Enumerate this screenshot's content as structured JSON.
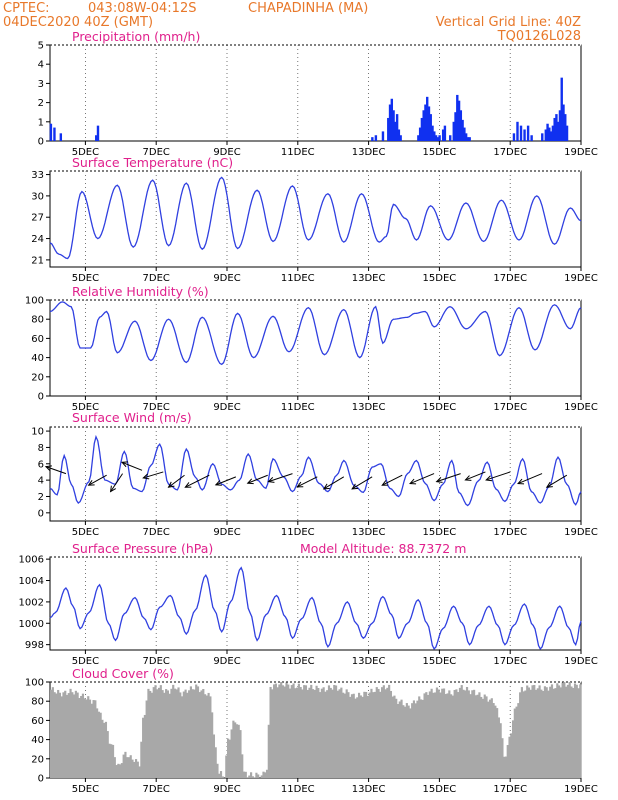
{
  "header": {
    "org": "CPTEC:",
    "coords": "043:08W-04:12S",
    "station": "CHAPADINHA (MA)",
    "run": "04DEC2020 40Z (GMT)",
    "grid_line": "Vertical Grid Line: 40Z",
    "model": "TQ0126L028"
  },
  "x_labels": [
    "5DEC",
    "7DEC",
    "9DEC",
    "11DEC",
    "13DEC",
    "15DEC",
    "17DEC",
    "19DEC"
  ],
  "x_label_days": [
    1,
    3,
    5,
    7,
    9,
    11,
    13,
    15
  ],
  "x_range_days": [
    0,
    15
  ],
  "colors": {
    "line": "#3040e0",
    "bars": "#1030f0",
    "cloud": "#a8a8a8",
    "title": "#e0208c",
    "header": "#e8782a",
    "arrow": "#000000",
    "grid": "#555555"
  },
  "chart_data": [
    {
      "id": "precip",
      "type": "bar",
      "title": "Precipitation (mm/h)",
      "ylim": [
        0,
        5
      ],
      "yticks": [
        0,
        1,
        2,
        3,
        4,
        5
      ],
      "x_day": [
        0.02,
        0.12,
        0.3,
        1.3,
        1.35,
        9.1,
        9.2,
        9.4,
        9.55,
        9.6,
        9.65,
        9.7,
        9.75,
        9.8,
        9.85,
        9.9,
        10.4,
        10.45,
        10.5,
        10.55,
        10.6,
        10.65,
        10.7,
        10.75,
        10.8,
        10.85,
        10.9,
        10.95,
        11.0,
        11.1,
        11.15,
        11.3,
        11.4,
        11.45,
        11.5,
        11.55,
        11.6,
        11.65,
        11.7,
        11.75,
        11.8,
        11.85,
        13.1,
        13.2,
        13.3,
        13.4,
        13.5,
        13.6,
        13.9,
        14.0,
        14.05,
        14.1,
        14.15,
        14.2,
        14.25,
        14.3,
        14.35,
        14.4,
        14.45,
        14.5,
        14.55,
        14.6
      ],
      "values": [
        0.9,
        0.7,
        0.4,
        0.3,
        0.8,
        0.2,
        0.3,
        0.5,
        1.2,
        1.9,
        2.2,
        1.6,
        1.0,
        1.4,
        0.6,
        0.3,
        0.3,
        0.7,
        1.2,
        1.6,
        1.9,
        2.3,
        1.8,
        1.4,
        0.8,
        0.5,
        0.3,
        0.2,
        0.3,
        0.6,
        0.8,
        0.3,
        1.0,
        1.5,
        2.4,
        2.1,
        1.6,
        1.1,
        0.7,
        0.4,
        0.2,
        0.2,
        0.4,
        1.0,
        0.8,
        0.6,
        0.8,
        0.3,
        0.4,
        0.6,
        0.9,
        0.7,
        0.5,
        0.8,
        1.2,
        1.4,
        1.0,
        1.6,
        3.3,
        1.9,
        1.4,
        0.8
      ]
    },
    {
      "id": "temp",
      "type": "line",
      "title": "Surface Temperature (nC)",
      "ylim": [
        20,
        33.5
      ],
      "yticks": [
        21,
        24,
        27,
        30,
        33
      ],
      "anchors": [
        [
          0,
          23.4
        ],
        [
          0.25,
          21.8
        ],
        [
          0.5,
          21.2
        ],
        [
          0.9,
          30.6
        ],
        [
          1.35,
          24.0
        ],
        [
          1.9,
          31.5
        ],
        [
          2.35,
          22.8
        ],
        [
          2.9,
          32.2
        ],
        [
          3.35,
          23.0
        ],
        [
          3.85,
          31.8
        ],
        [
          4.3,
          22.5
        ],
        [
          4.85,
          32.6
        ],
        [
          5.3,
          22.6
        ],
        [
          5.85,
          30.8
        ],
        [
          6.3,
          23.6
        ],
        [
          6.85,
          31.4
        ],
        [
          7.3,
          23.8
        ],
        [
          7.85,
          30.3
        ],
        [
          8.3,
          23.5
        ],
        [
          8.8,
          30.3
        ],
        [
          9.3,
          23.5
        ],
        [
          9.5,
          24.3
        ],
        [
          9.7,
          28.8
        ],
        [
          10.05,
          26.8
        ],
        [
          10.35,
          23.8
        ],
        [
          10.75,
          28.6
        ],
        [
          11.25,
          23.8
        ],
        [
          11.75,
          29.0
        ],
        [
          12.25,
          23.6
        ],
        [
          12.75,
          29.4
        ],
        [
          13.25,
          23.8
        ],
        [
          13.75,
          30.0
        ],
        [
          14.25,
          23.2
        ],
        [
          14.7,
          28.3
        ],
        [
          15.0,
          26.5
        ]
      ]
    },
    {
      "id": "rh",
      "type": "line",
      "title": "Relative Humidity (%)",
      "ylim": [
        0,
        100
      ],
      "yticks": [
        0,
        20,
        40,
        60,
        80,
        100
      ],
      "anchors": [
        [
          0,
          88
        ],
        [
          0.35,
          98
        ],
        [
          0.6,
          93
        ],
        [
          0.85,
          50
        ],
        [
          1.15,
          50
        ],
        [
          1.4,
          82
        ],
        [
          1.6,
          88
        ],
        [
          1.9,
          45
        ],
        [
          2.4,
          78
        ],
        [
          2.85,
          37
        ],
        [
          3.35,
          80
        ],
        [
          3.85,
          35
        ],
        [
          4.3,
          82
        ],
        [
          4.85,
          33
        ],
        [
          5.3,
          86
        ],
        [
          5.75,
          40
        ],
        [
          6.3,
          83
        ],
        [
          6.75,
          46
        ],
        [
          7.3,
          92
        ],
        [
          7.75,
          43
        ],
        [
          8.3,
          90
        ],
        [
          8.75,
          40
        ],
        [
          9.2,
          93
        ],
        [
          9.4,
          55
        ],
        [
          9.7,
          80
        ],
        [
          10.1,
          82
        ],
        [
          10.3,
          86
        ],
        [
          10.6,
          88
        ],
        [
          10.85,
          72
        ],
        [
          11.3,
          93
        ],
        [
          11.75,
          70
        ],
        [
          12.3,
          88
        ],
        [
          12.7,
          42
        ],
        [
          13.25,
          92
        ],
        [
          13.7,
          48
        ],
        [
          14.25,
          95
        ],
        [
          14.7,
          70
        ],
        [
          15.0,
          92
        ]
      ]
    },
    {
      "id": "wind",
      "type": "line",
      "title": "Surface Wind (m/s)",
      "ylim": [
        -1,
        10.5
      ],
      "yticks": [
        0,
        2,
        4,
        6,
        8,
        10
      ],
      "anchors": [
        [
          0,
          3.0
        ],
        [
          0.2,
          2.2
        ],
        [
          0.4,
          7.0
        ],
        [
          0.6,
          3.5
        ],
        [
          0.8,
          1.2
        ],
        [
          1.1,
          3.8
        ],
        [
          1.3,
          9.3
        ],
        [
          1.55,
          4.0
        ],
        [
          1.85,
          3.5
        ],
        [
          2.1,
          7.5
        ],
        [
          2.35,
          3.0
        ],
        [
          2.6,
          2.6
        ],
        [
          2.85,
          5.8
        ],
        [
          3.1,
          8.4
        ],
        [
          3.35,
          3.5
        ],
        [
          3.6,
          2.8
        ],
        [
          3.85,
          7.8
        ],
        [
          4.1,
          4.4
        ],
        [
          4.3,
          2.8
        ],
        [
          4.6,
          6.0
        ],
        [
          4.85,
          3.5
        ],
        [
          5.1,
          2.8
        ],
        [
          5.35,
          4.0
        ],
        [
          5.6,
          7.2
        ],
        [
          5.85,
          4.0
        ],
        [
          6.1,
          3.0
        ],
        [
          6.3,
          6.6
        ],
        [
          6.6,
          4.4
        ],
        [
          6.85,
          2.6
        ],
        [
          7.1,
          4.5
        ],
        [
          7.3,
          6.8
        ],
        [
          7.6,
          3.6
        ],
        [
          7.85,
          2.6
        ],
        [
          8.1,
          4.6
        ],
        [
          8.3,
          6.4
        ],
        [
          8.6,
          3.3
        ],
        [
          8.85,
          2.5
        ],
        [
          9.1,
          5.6
        ],
        [
          9.35,
          6.0
        ],
        [
          9.6,
          3.0
        ],
        [
          9.85,
          2.0
        ],
        [
          10.1,
          4.8
        ],
        [
          10.35,
          6.4
        ],
        [
          10.6,
          3.6
        ],
        [
          10.85,
          1.5
        ],
        [
          11.1,
          3.5
        ],
        [
          11.35,
          6.4
        ],
        [
          11.55,
          2.5
        ],
        [
          11.8,
          0.9
        ],
        [
          12.1,
          3.9
        ],
        [
          12.35,
          6.2
        ],
        [
          12.6,
          2.9
        ],
        [
          12.85,
          1.4
        ],
        [
          13.1,
          3.5
        ],
        [
          13.35,
          6.6
        ],
        [
          13.6,
          2.6
        ],
        [
          13.85,
          1.2
        ],
        [
          14.1,
          3.2
        ],
        [
          14.35,
          6.8
        ],
        [
          14.6,
          3.5
        ],
        [
          14.85,
          1.0
        ],
        [
          15.0,
          2.6
        ]
      ],
      "arrows": [
        [
          0.45,
          4.8,
          -0.5,
          0.35
        ],
        [
          1.6,
          4.6,
          -0.45,
          -0.5
        ],
        [
          2.05,
          4.8,
          -0.3,
          -0.9
        ],
        [
          2.6,
          5.2,
          -0.5,
          0.4
        ],
        [
          3.2,
          5.0,
          -0.5,
          -0.3
        ],
        [
          3.8,
          4.6,
          -0.4,
          -0.6
        ],
        [
          4.5,
          4.6,
          -0.6,
          -0.6
        ],
        [
          5.25,
          4.4,
          -0.5,
          -0.4
        ],
        [
          6.15,
          4.6,
          -0.5,
          -0.4
        ],
        [
          6.85,
          4.8,
          -0.6,
          -0.4
        ],
        [
          7.55,
          4.4,
          -0.5,
          -0.5
        ],
        [
          8.3,
          4.4,
          -0.5,
          -0.6
        ],
        [
          9.1,
          4.4,
          -0.5,
          -0.6
        ],
        [
          9.95,
          4.6,
          -0.5,
          -0.5
        ],
        [
          10.85,
          4.8,
          -0.6,
          -0.5
        ],
        [
          11.6,
          4.8,
          -0.6,
          -0.4
        ],
        [
          12.3,
          5.0,
          -0.5,
          -0.4
        ],
        [
          13.0,
          5.0,
          -0.6,
          -0.4
        ],
        [
          13.9,
          4.8,
          -0.6,
          -0.5
        ],
        [
          14.6,
          4.6,
          -0.5,
          -0.6
        ]
      ]
    },
    {
      "id": "pres",
      "type": "line",
      "title": "Surface Pressure (hPa)",
      "annotation": "Model Altitude: 88.7372 m",
      "ylim": [
        997.5,
        1006.2
      ],
      "yticks": [
        998,
        1000,
        1002,
        1004,
        1006
      ],
      "anchors": [
        [
          0,
          1000.5
        ],
        [
          0.15,
          1001.0
        ],
        [
          0.45,
          1003.3
        ],
        [
          0.65,
          1001.6
        ],
        [
          0.85,
          999.5
        ],
        [
          1.1,
          1001.0
        ],
        [
          1.4,
          1003.6
        ],
        [
          1.65,
          1000.0
        ],
        [
          1.85,
          998.4
        ],
        [
          2.1,
          1000.9
        ],
        [
          2.4,
          1002.4
        ],
        [
          2.65,
          1000.5
        ],
        [
          2.85,
          999.4
        ],
        [
          3.1,
          1001.5
        ],
        [
          3.4,
          1002.6
        ],
        [
          3.65,
          1000.6
        ],
        [
          3.85,
          999.0
        ],
        [
          4.1,
          1001.2
        ],
        [
          4.4,
          1004.5
        ],
        [
          4.65,
          1001.2
        ],
        [
          4.85,
          999.2
        ],
        [
          5.1,
          1002.0
        ],
        [
          5.4,
          1005.2
        ],
        [
          5.65,
          1001.0
        ],
        [
          5.85,
          998.4
        ],
        [
          6.1,
          1000.8
        ],
        [
          6.4,
          1002.6
        ],
        [
          6.65,
          1000.6
        ],
        [
          6.85,
          998.6
        ],
        [
          7.1,
          1000.4
        ],
        [
          7.4,
          1002.4
        ],
        [
          7.65,
          1000.0
        ],
        [
          7.85,
          997.8
        ],
        [
          8.1,
          1000.0
        ],
        [
          8.4,
          1002.0
        ],
        [
          8.65,
          1000.0
        ],
        [
          8.85,
          998.6
        ],
        [
          9.1,
          1000.0
        ],
        [
          9.4,
          1002.5
        ],
        [
          9.65,
          1000.8
        ],
        [
          9.85,
          998.6
        ],
        [
          10.1,
          1000.0
        ],
        [
          10.4,
          1002.2
        ],
        [
          10.65,
          1000.0
        ],
        [
          10.85,
          997.6
        ],
        [
          11.1,
          999.5
        ],
        [
          11.4,
          1001.6
        ],
        [
          11.65,
          1000.0
        ],
        [
          11.85,
          998.0
        ],
        [
          12.1,
          999.8
        ],
        [
          12.4,
          1001.6
        ],
        [
          12.65,
          999.8
        ],
        [
          12.85,
          998.0
        ],
        [
          13.1,
          999.8
        ],
        [
          13.4,
          1001.8
        ],
        [
          13.65,
          999.8
        ],
        [
          13.85,
          997.6
        ],
        [
          14.1,
          999.6
        ],
        [
          14.4,
          1001.6
        ],
        [
          14.65,
          999.6
        ],
        [
          14.85,
          998.0
        ],
        [
          15.0,
          1000.2
        ]
      ]
    },
    {
      "id": "cloud",
      "type": "bar",
      "title": "Cloud Cover (%)",
      "ylim": [
        0,
        100
      ],
      "yticks": [
        0,
        20,
        40,
        60,
        80,
        100
      ],
      "anchors": [
        [
          0,
          92
        ],
        [
          0.3,
          88
        ],
        [
          0.6,
          90
        ],
        [
          0.9,
          85
        ],
        [
          1.2,
          80
        ],
        [
          1.5,
          60
        ],
        [
          1.7,
          35
        ],
        [
          1.9,
          12
        ],
        [
          2.1,
          25
        ],
        [
          2.3,
          20
        ],
        [
          2.5,
          15
        ],
        [
          2.6,
          60
        ],
        [
          2.75,
          90
        ],
        [
          3.0,
          95
        ],
        [
          3.3,
          90
        ],
        [
          3.5,
          95
        ],
        [
          3.7,
          88
        ],
        [
          3.9,
          92
        ],
        [
          4.1,
          95
        ],
        [
          4.3,
          90
        ],
        [
          4.5,
          85
        ],
        [
          4.65,
          30
        ],
        [
          4.75,
          5
        ],
        [
          4.9,
          2
        ],
        [
          5.0,
          40
        ],
        [
          5.2,
          60
        ],
        [
          5.35,
          50
        ],
        [
          5.45,
          5
        ],
        [
          5.6,
          3
        ],
        [
          5.8,
          3
        ],
        [
          5.95,
          2
        ],
        [
          6.1,
          10
        ],
        [
          6.2,
          95
        ],
        [
          6.5,
          98
        ],
        [
          6.8,
          96
        ],
        [
          7.1,
          95
        ],
        [
          7.4,
          94
        ],
        [
          7.7,
          92
        ],
        [
          8.0,
          95
        ],
        [
          8.3,
          90
        ],
        [
          8.6,
          85
        ],
        [
          8.9,
          88
        ],
        [
          9.2,
          92
        ],
        [
          9.5,
          95
        ],
        [
          9.8,
          80
        ],
        [
          10.1,
          75
        ],
        [
          10.4,
          82
        ],
        [
          10.7,
          90
        ],
        [
          11.0,
          92
        ],
        [
          11.3,
          88
        ],
        [
          11.6,
          94
        ],
        [
          11.9,
          90
        ],
        [
          12.2,
          85
        ],
        [
          12.5,
          80
        ],
        [
          12.7,
          60
        ],
        [
          12.8,
          20
        ],
        [
          12.95,
          40
        ],
        [
          13.1,
          70
        ],
        [
          13.3,
          92
        ],
        [
          13.6,
          95
        ],
        [
          13.9,
          93
        ],
        [
          14.2,
          95
        ],
        [
          14.5,
          98
        ],
        [
          14.8,
          96
        ],
        [
          15.0,
          97
        ]
      ]
    }
  ]
}
